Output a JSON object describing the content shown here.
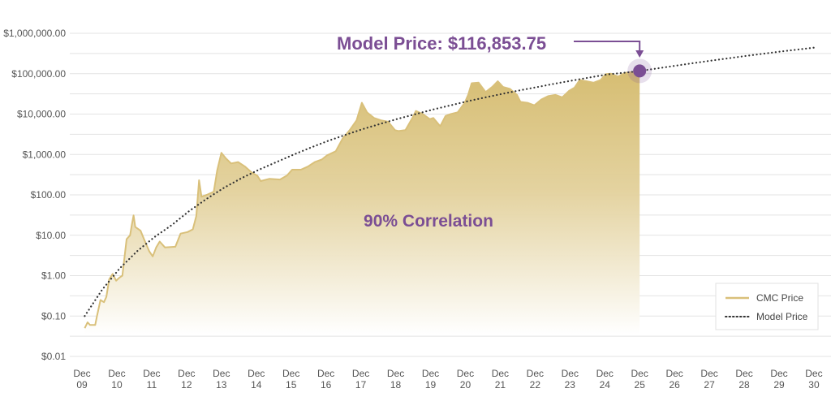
{
  "chart_data": {
    "type": "area",
    "title": "",
    "xlabel": "",
    "ylabel": "",
    "yscale": "log",
    "ylim": [
      0.01,
      1000000
    ],
    "xlim": [
      2009.92,
      2030.5
    ],
    "grid": true,
    "legend_position": "bottom-right",
    "y_ticks": [
      {
        "value": 1000000,
        "label": "$1,000,000.00"
      },
      {
        "value": 100000,
        "label": "$100,000.00"
      },
      {
        "value": 10000,
        "label": "$10,000.00"
      },
      {
        "value": 1000,
        "label": "$1,000.00"
      },
      {
        "value": 100,
        "label": "$100.00"
      },
      {
        "value": 10,
        "label": "$10.00"
      },
      {
        "value": 1,
        "label": "$1.00"
      },
      {
        "value": 0.1,
        "label": "$0.10"
      },
      {
        "value": 0.01,
        "label": "$0.01"
      }
    ],
    "x_ticks": [
      {
        "value": 2009.92,
        "line1": "Dec",
        "line2": "09"
      },
      {
        "value": 2010.92,
        "line1": "Dec",
        "line2": "10"
      },
      {
        "value": 2011.92,
        "line1": "Dec",
        "line2": "11"
      },
      {
        "value": 2012.92,
        "line1": "Dec",
        "line2": "12"
      },
      {
        "value": 2013.92,
        "line1": "Dec",
        "line2": "13"
      },
      {
        "value": 2014.92,
        "line1": "Dec",
        "line2": "14"
      },
      {
        "value": 2015.92,
        "line1": "Dec",
        "line2": "15"
      },
      {
        "value": 2016.92,
        "line1": "Dec",
        "line2": "16"
      },
      {
        "value": 2017.92,
        "line1": "Dec",
        "line2": "17"
      },
      {
        "value": 2018.92,
        "line1": "Dec",
        "line2": "18"
      },
      {
        "value": 2019.92,
        "line1": "Dec",
        "line2": "19"
      },
      {
        "value": 2020.92,
        "line1": "Dec",
        "line2": "20"
      },
      {
        "value": 2021.92,
        "line1": "Dec",
        "line2": "21"
      },
      {
        "value": 2022.92,
        "line1": "Dec",
        "line2": "22"
      },
      {
        "value": 2023.92,
        "line1": "Dec",
        "line2": "23"
      },
      {
        "value": 2024.92,
        "line1": "Dec",
        "line2": "24"
      },
      {
        "value": 2025.92,
        "line1": "Dec",
        "line2": "25"
      },
      {
        "value": 2026.92,
        "line1": "Dec",
        "line2": "26"
      },
      {
        "value": 2027.92,
        "line1": "Dec",
        "line2": "27"
      },
      {
        "value": 2028.92,
        "line1": "Dec",
        "line2": "28"
      },
      {
        "value": 2029.92,
        "line1": "Dec",
        "line2": "29"
      },
      {
        "value": 2030.92,
        "line1": "Dec",
        "line2": "30"
      }
    ],
    "series": [
      {
        "name": "CMC Price",
        "style": "area",
        "color": "#d9c07a",
        "points": [
          [
            2010.0,
            0.05
          ],
          [
            2010.08,
            0.07
          ],
          [
            2010.15,
            0.06
          ],
          [
            2010.3,
            0.06
          ],
          [
            2010.35,
            0.1
          ],
          [
            2010.45,
            0.25
          ],
          [
            2010.55,
            0.22
          ],
          [
            2010.62,
            0.3
          ],
          [
            2010.7,
            0.8
          ],
          [
            2010.8,
            1.1
          ],
          [
            2010.9,
            0.75
          ],
          [
            2011.0,
            0.9
          ],
          [
            2011.08,
            1.0
          ],
          [
            2011.2,
            8.0
          ],
          [
            2011.3,
            10.0
          ],
          [
            2011.35,
            18.0
          ],
          [
            2011.4,
            31.0
          ],
          [
            2011.45,
            16.0
          ],
          [
            2011.6,
            13.0
          ],
          [
            2011.7,
            8.0
          ],
          [
            2011.85,
            4.0
          ],
          [
            2011.95,
            3.0
          ],
          [
            2012.05,
            5.0
          ],
          [
            2012.15,
            7.0
          ],
          [
            2012.3,
            5.0
          ],
          [
            2012.6,
            5.2
          ],
          [
            2012.75,
            11.0
          ],
          [
            2012.95,
            12.0
          ],
          [
            2013.1,
            14.0
          ],
          [
            2013.2,
            30.0
          ],
          [
            2013.28,
            230.0
          ],
          [
            2013.35,
            90.0
          ],
          [
            2013.5,
            100.0
          ],
          [
            2013.7,
            120.0
          ],
          [
            2013.8,
            400.0
          ],
          [
            2013.92,
            1100.0
          ],
          [
            2014.05,
            800.0
          ],
          [
            2014.2,
            600.0
          ],
          [
            2014.4,
            650.0
          ],
          [
            2014.6,
            500.0
          ],
          [
            2014.8,
            350.0
          ],
          [
            2014.95,
            300.0
          ],
          [
            2015.05,
            220.0
          ],
          [
            2015.3,
            250.0
          ],
          [
            2015.6,
            240.0
          ],
          [
            2015.8,
            300.0
          ],
          [
            2015.95,
            420.0
          ],
          [
            2016.2,
            420.0
          ],
          [
            2016.4,
            500.0
          ],
          [
            2016.6,
            650.0
          ],
          [
            2016.8,
            750.0
          ],
          [
            2016.95,
            950.0
          ],
          [
            2017.2,
            1200.0
          ],
          [
            2017.4,
            2500.0
          ],
          [
            2017.6,
            4000.0
          ],
          [
            2017.8,
            7000.0
          ],
          [
            2017.95,
            19000.0
          ],
          [
            2018.1,
            11000.0
          ],
          [
            2018.3,
            8000.0
          ],
          [
            2018.5,
            7000.0
          ],
          [
            2018.7,
            6500.0
          ],
          [
            2018.9,
            4000.0
          ],
          [
            2019.0,
            3800.0
          ],
          [
            2019.2,
            4000.0
          ],
          [
            2019.4,
            8000.0
          ],
          [
            2019.5,
            12000.0
          ],
          [
            2019.7,
            10000.0
          ],
          [
            2019.9,
            7500.0
          ],
          [
            2020.0,
            8000.0
          ],
          [
            2020.2,
            5000.0
          ],
          [
            2020.35,
            9000.0
          ],
          [
            2020.5,
            10000.0
          ],
          [
            2020.7,
            11000.0
          ],
          [
            2020.9,
            19000.0
          ],
          [
            2021.0,
            30000.0
          ],
          [
            2021.1,
            58000.0
          ],
          [
            2021.3,
            60000.0
          ],
          [
            2021.5,
            35000.0
          ],
          [
            2021.7,
            48000.0
          ],
          [
            2021.85,
            65000.0
          ],
          [
            2022.0,
            47000.0
          ],
          [
            2022.2,
            42000.0
          ],
          [
            2022.4,
            30000.0
          ],
          [
            2022.5,
            20000.0
          ],
          [
            2022.7,
            19000.0
          ],
          [
            2022.9,
            16500.0
          ],
          [
            2023.1,
            23000.0
          ],
          [
            2023.3,
            28000.0
          ],
          [
            2023.5,
            30000.0
          ],
          [
            2023.7,
            26000.0
          ],
          [
            2023.9,
            38000.0
          ],
          [
            2024.05,
            45000.0
          ],
          [
            2024.2,
            70000.0
          ],
          [
            2024.4,
            65000.0
          ],
          [
            2024.6,
            60000.0
          ],
          [
            2024.8,
            70000.0
          ],
          [
            2024.95,
            98000.0
          ],
          [
            2025.1,
            100000.0
          ],
          [
            2025.3,
            85000.0
          ],
          [
            2025.5,
            105000.0
          ],
          [
            2025.7,
            110000.0
          ],
          [
            2025.92,
            116853.75
          ]
        ]
      },
      {
        "name": "Model Price",
        "style": "dotted",
        "color": "#333333",
        "points": [
          [
            2010.0,
            0.1
          ],
          [
            2010.5,
            0.45
          ],
          [
            2011.0,
            1.5
          ],
          [
            2011.5,
            4.0
          ],
          [
            2012.0,
            9.0
          ],
          [
            2012.5,
            18.0
          ],
          [
            2013.0,
            40.0
          ],
          [
            2013.5,
            80.0
          ],
          [
            2014.0,
            150.0
          ],
          [
            2014.5,
            260.0
          ],
          [
            2015.0,
            420.0
          ],
          [
            2015.5,
            650.0
          ],
          [
            2016.0,
            1000.0
          ],
          [
            2016.5,
            1500.0
          ],
          [
            2017.0,
            2200.0
          ],
          [
            2017.5,
            3100.0
          ],
          [
            2018.0,
            4300.0
          ],
          [
            2018.5,
            5800.0
          ],
          [
            2019.0,
            7700.0
          ],
          [
            2019.5,
            10000.0
          ],
          [
            2020.0,
            13000.0
          ],
          [
            2020.5,
            16500.0
          ],
          [
            2021.0,
            21000.0
          ],
          [
            2021.5,
            26000.0
          ],
          [
            2022.0,
            32000.0
          ],
          [
            2022.5,
            39000.0
          ],
          [
            2023.0,
            47000.0
          ],
          [
            2023.5,
            57000.0
          ],
          [
            2024.0,
            68000.0
          ],
          [
            2024.5,
            81000.0
          ],
          [
            2025.0,
            96000.0
          ],
          [
            2025.5,
            106000.0
          ],
          [
            2025.92,
            116853.75
          ],
          [
            2026.5,
            138000.0
          ],
          [
            2027.0,
            160000.0
          ],
          [
            2027.5,
            185000.0
          ],
          [
            2028.0,
            212000.0
          ],
          [
            2028.5,
            243000.0
          ],
          [
            2029.0,
            277000.0
          ],
          [
            2029.5,
            315000.0
          ],
          [
            2030.0,
            357000.0
          ],
          [
            2030.5,
            400000.0
          ],
          [
            2031.0,
            450000.0
          ]
        ]
      }
    ],
    "highlight_point": {
      "x": 2025.92,
      "y": 116853.75,
      "color": "#7b4e94"
    },
    "annotations": [
      {
        "id": "model-price",
        "text": "Model Price: $116,853.75",
        "color": "#7b4e94"
      },
      {
        "id": "correlation",
        "text": "90% Correlation",
        "color": "#7b4e94"
      }
    ],
    "legend": [
      {
        "label": "CMC Price",
        "style": "solid",
        "color": "#d9c07a"
      },
      {
        "label": "Model Price",
        "style": "dotted",
        "color": "#333333"
      }
    ]
  }
}
